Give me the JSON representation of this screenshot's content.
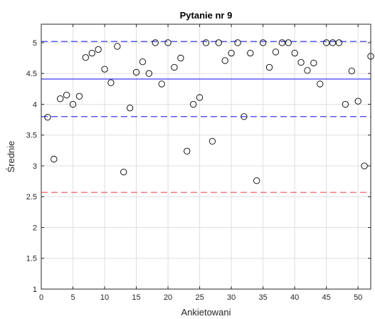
{
  "chart_data": {
    "type": "scatter",
    "title": "Pytanie nr 9",
    "xlabel": "Ankietowani",
    "ylabel": "Średnie",
    "xlim": [
      0,
      52
    ],
    "ylim": [
      1,
      5.3
    ],
    "xticks": [
      0,
      5,
      10,
      15,
      20,
      25,
      30,
      35,
      40,
      45,
      50
    ],
    "yticks": [
      1,
      1.5,
      2,
      2.5,
      3,
      3.5,
      4,
      4.5,
      5
    ],
    "xtick_labels": [
      "0",
      "5",
      "10",
      "15",
      "20",
      "25",
      "30",
      "35",
      "40",
      "45",
      "50"
    ],
    "ytick_labels": [
      "1",
      "1.5",
      "2",
      "2.5",
      "3",
      "3.5",
      "4",
      "4.5",
      "5"
    ],
    "grid": true,
    "series": [
      {
        "marker": "circle-open",
        "color": "#000000",
        "x": [
          1,
          2,
          3,
          4,
          5,
          6,
          7,
          8,
          9,
          10,
          11,
          12,
          13,
          14,
          15,
          16,
          17,
          18,
          19,
          20,
          21,
          22,
          23,
          24,
          25,
          26,
          27,
          28,
          29,
          30,
          31,
          32,
          33,
          34,
          35,
          36,
          37,
          38,
          39,
          40,
          41,
          42,
          43,
          44,
          45,
          46,
          47,
          48,
          49,
          50,
          51,
          52
        ],
        "y": [
          3.79,
          3.11,
          4.09,
          4.15,
          4.0,
          4.13,
          4.76,
          4.83,
          4.89,
          4.57,
          4.35,
          4.94,
          2.9,
          3.94,
          4.52,
          4.69,
          4.5,
          5.0,
          4.33,
          5.0,
          4.6,
          4.75,
          3.24,
          4.0,
          4.11,
          5.0,
          3.4,
          5.0,
          4.71,
          4.83,
          5.0,
          3.8,
          4.83,
          2.76,
          5.0,
          4.6,
          4.85,
          5.0,
          5.0,
          4.83,
          4.68,
          4.55,
          4.67,
          4.33,
          5.0,
          5.0,
          5.0,
          4.0,
          4.54,
          4.05,
          3.0,
          4.78
        ]
      }
    ],
    "reference_lines": [
      {
        "y": 4.41,
        "style": "solid",
        "color": "#3c3cf0"
      },
      {
        "y": 5.02,
        "style": "dashed",
        "color": "#3c3cf0"
      },
      {
        "y": 3.8,
        "style": "dashed",
        "color": "#3c3cf0"
      },
      {
        "y": 2.57,
        "style": "dashed",
        "color": "#f05050"
      }
    ]
  }
}
